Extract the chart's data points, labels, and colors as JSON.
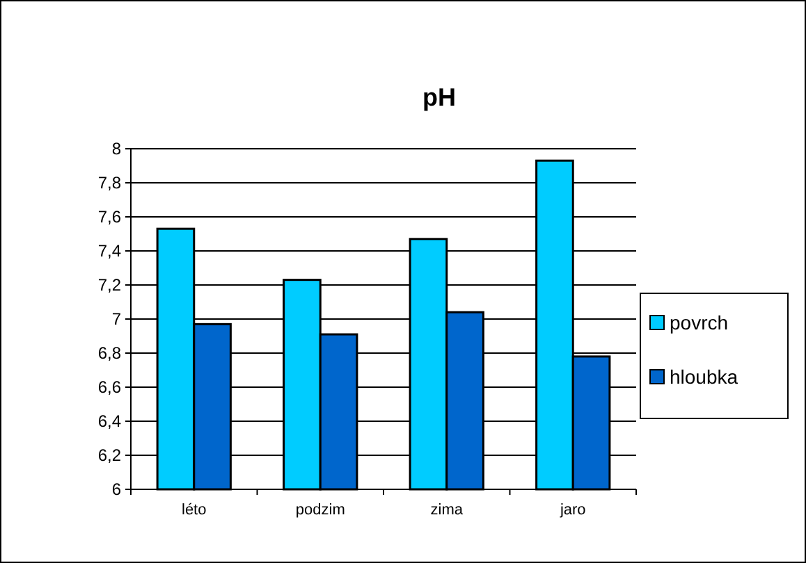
{
  "chart_data": {
    "type": "bar",
    "title": "pH",
    "categories": [
      "léto",
      "podzim",
      "zima",
      "jaro"
    ],
    "series": [
      {
        "name": "povrch",
        "color": "#00ccff",
        "values": [
          7.53,
          7.23,
          7.47,
          7.93
        ]
      },
      {
        "name": "hloubka",
        "color": "#0066cc",
        "values": [
          6.97,
          6.91,
          7.04,
          6.78
        ]
      }
    ],
    "ylim": [
      6,
      8
    ],
    "yticks": [
      6,
      {
        "value": 6.2,
        "label": "6,2"
      },
      {
        "value": 6.4,
        "label": "6,4"
      },
      {
        "value": 6.6,
        "label": "6,6"
      },
      {
        "value": 6.8,
        "label": "6,8"
      },
      7,
      {
        "value": 7.2,
        "label": "7,2"
      },
      {
        "value": 7.4,
        "label": "7,4"
      },
      {
        "value": 7.6,
        "label": "7,6"
      },
      {
        "value": 7.8,
        "label": "7,8"
      },
      8
    ],
    "grid": "y",
    "legend": "right"
  }
}
